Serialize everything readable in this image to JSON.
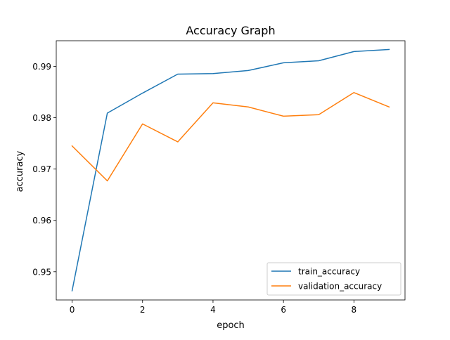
{
  "chart_data": {
    "type": "line",
    "title": "Accuracy Graph",
    "xlabel": "epoch",
    "ylabel": "accuracy",
    "x": [
      0,
      1,
      2,
      3,
      4,
      5,
      6,
      7,
      8,
      9
    ],
    "xlim": [
      -0.45,
      9.45
    ],
    "ylim": [
      0.9445,
      0.995
    ],
    "xticks": [
      0,
      2,
      4,
      6,
      8
    ],
    "yticks": [
      0.95,
      0.96,
      0.97,
      0.98,
      0.99
    ],
    "xtick_labels": [
      "0",
      "2",
      "4",
      "6",
      "8"
    ],
    "ytick_labels": [
      "0.95",
      "0.96",
      "0.97",
      "0.98",
      "0.99"
    ],
    "grid": false,
    "legend_position": "lower-right",
    "series": [
      {
        "name": "train_accuracy",
        "color": "#1f77b4",
        "values": [
          0.9463,
          0.9809,
          0.9848,
          0.9885,
          0.9886,
          0.9892,
          0.9907,
          0.9911,
          0.9929,
          0.9933
        ]
      },
      {
        "name": "validation_accuracy",
        "color": "#ff7f0e",
        "values": [
          0.9745,
          0.9677,
          0.9788,
          0.9753,
          0.9829,
          0.9821,
          0.9803,
          0.9806,
          0.9849,
          0.9821
        ]
      }
    ]
  }
}
